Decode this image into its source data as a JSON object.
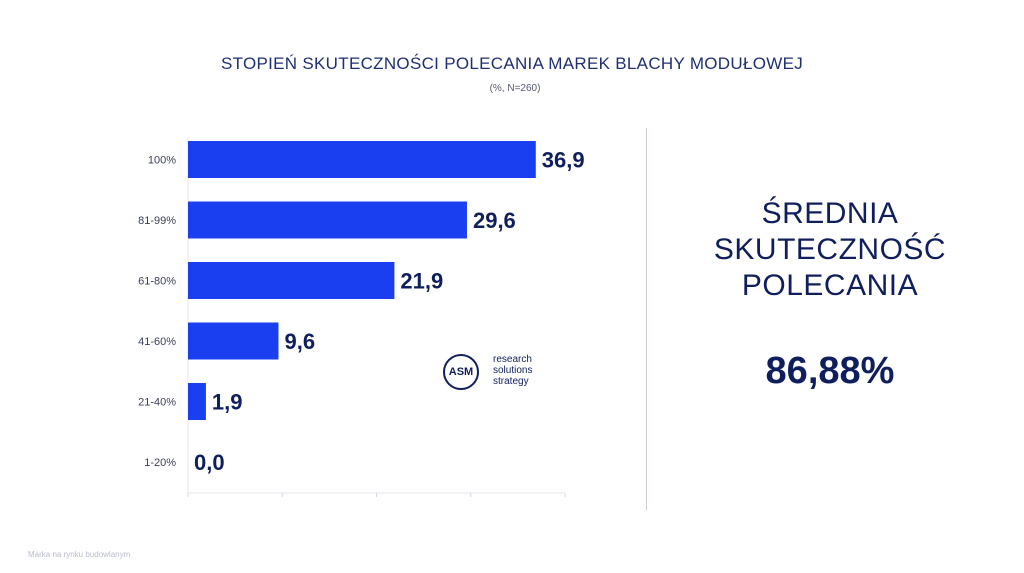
{
  "header": {
    "title": "STOPIEŃ SKUTECZNOŚCI POLECANIA MAREK BLACHY MODUŁOWEJ",
    "subtitle": "(%, N=260)"
  },
  "chart_data": {
    "type": "bar",
    "orientation": "horizontal",
    "categories": [
      "100%",
      "81-99%",
      "61-80%",
      "41-60%",
      "21-40%",
      "1-20%"
    ],
    "values": [
      36.9,
      29.6,
      21.9,
      9.6,
      1.9,
      0.0
    ],
    "value_labels": [
      "36,9",
      "29,6",
      "21,9",
      "9,6",
      "1,9",
      "0,0"
    ],
    "xlim": [
      0,
      40
    ],
    "grid": false,
    "bar_color": "#1a3ff0"
  },
  "summary": {
    "title_lines": [
      "ŚREDNIA",
      "SKUTECZNOŚĆ",
      "POLECANIA"
    ],
    "value": "86,88%"
  },
  "logo": {
    "mark": "ASM",
    "lines": [
      "research",
      "solutions",
      "strategy"
    ]
  },
  "footer": {
    "text": "Marka na rynku budowlanym"
  },
  "colors": {
    "bar": "#1a3ff0",
    "navy": "#0f1e5c",
    "divider": "#c9ccd6"
  }
}
